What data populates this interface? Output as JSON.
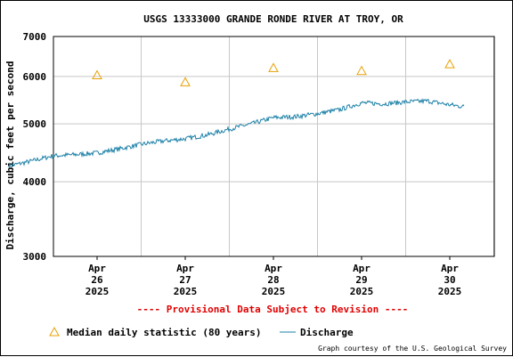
{
  "chart_data": {
    "type": "line",
    "title": "USGS 13333000 GRANDE RONDE RIVER AT TROY, OR",
    "ylabel": "Discharge, cubic feet per second",
    "xlabel": "",
    "y_scale": "log",
    "ylim": [
      3000,
      7000
    ],
    "y_ticks": [
      "3000",
      "4000",
      "5000",
      "6000",
      "7000"
    ],
    "x_ticks": [
      {
        "month": "Apr",
        "day": "26",
        "year": "2025"
      },
      {
        "month": "Apr",
        "day": "27",
        "year": "2025"
      },
      {
        "month": "Apr",
        "day": "28",
        "year": "2025"
      },
      {
        "month": "Apr",
        "day": "29",
        "year": "2025"
      },
      {
        "month": "Apr",
        "day": "30",
        "year": "2025"
      }
    ],
    "grid": true,
    "series": [
      {
        "name": "Median daily statistic (80 years)",
        "type": "scatter",
        "marker": "triangle",
        "color": "#e8a000",
        "points": [
          {
            "x": "2025-04-26 12:00",
            "y": 6030
          },
          {
            "x": "2025-04-27 12:00",
            "y": 5870
          },
          {
            "x": "2025-04-28 12:00",
            "y": 6200
          },
          {
            "x": "2025-04-29 12:00",
            "y": 6130
          },
          {
            "x": "2025-04-30 12:00",
            "y": 6290
          }
        ]
      },
      {
        "name": "Discharge",
        "type": "line",
        "color": "#1a7fa6",
        "points": [
          {
            "x": "2025-04-25 12:00",
            "y": 4250
          },
          {
            "x": "2025-04-25 18:00",
            "y": 4330
          },
          {
            "x": "2025-04-26 00:00",
            "y": 4420
          },
          {
            "x": "2025-04-26 06:00",
            "y": 4440
          },
          {
            "x": "2025-04-26 12:00",
            "y": 4470
          },
          {
            "x": "2025-04-26 18:00",
            "y": 4540
          },
          {
            "x": "2025-04-27 00:00",
            "y": 4620
          },
          {
            "x": "2025-04-27 06:00",
            "y": 4680
          },
          {
            "x": "2025-04-27 12:00",
            "y": 4720
          },
          {
            "x": "2025-04-27 18:00",
            "y": 4790
          },
          {
            "x": "2025-04-28 00:00",
            "y": 4900
          },
          {
            "x": "2025-04-28 06:00",
            "y": 5000
          },
          {
            "x": "2025-04-28 12:00",
            "y": 5120
          },
          {
            "x": "2025-04-28 18:00",
            "y": 5140
          },
          {
            "x": "2025-04-29 00:00",
            "y": 5200
          },
          {
            "x": "2025-04-29 06:00",
            "y": 5280
          },
          {
            "x": "2025-04-29 12:00",
            "y": 5420
          },
          {
            "x": "2025-04-29 18:00",
            "y": 5400
          },
          {
            "x": "2025-04-30 00:00",
            "y": 5440
          },
          {
            "x": "2025-04-30 06:00",
            "y": 5460
          },
          {
            "x": "2025-04-30 12:00",
            "y": 5380
          },
          {
            "x": "2025-04-30 16:00",
            "y": 5340
          }
        ]
      }
    ]
  },
  "notice": "---- Provisional Data Subject to Revision ----",
  "legend": {
    "median_label": "Median daily statistic (80 years)",
    "discharge_label": "Discharge"
  },
  "credit": "Graph courtesy of the U.S. Geological Survey"
}
